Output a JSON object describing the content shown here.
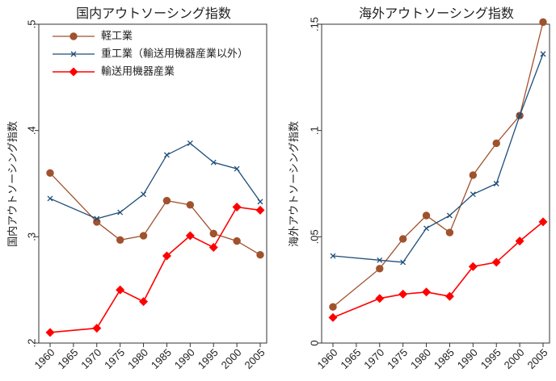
{
  "chart_data": [
    {
      "type": "line",
      "title": "国内アウトソーシング指数",
      "ylabel": "国内アウトソーシング指数",
      "xlabel": "",
      "x": [
        1960,
        1970,
        1975,
        1980,
        1985,
        1990,
        1995,
        2000,
        2005
      ],
      "xticks": [
        1960,
        1965,
        1970,
        1975,
        1980,
        1985,
        1990,
        1995,
        2000,
        2005
      ],
      "yticks": [
        0.2,
        0.3,
        0.4,
        0.5
      ],
      "ytick_labels": [
        ".2",
        ".3",
        ".4",
        ".5"
      ],
      "ylim": [
        0.2,
        0.5
      ],
      "grid": false,
      "legend_position": "top-left",
      "series": [
        {
          "name": "軽工業",
          "color": "#a0522d",
          "marker": "circle",
          "values": [
            0.36,
            0.314,
            0.297,
            0.301,
            0.334,
            0.33,
            0.303,
            0.296,
            0.283
          ]
        },
        {
          "name": "重工業（輸送用機器産業以外）",
          "color": "#1f4e79",
          "marker": "x",
          "values": [
            0.336,
            0.317,
            0.323,
            0.34,
            0.377,
            0.388,
            0.37,
            0.364,
            0.333
          ]
        },
        {
          "name": "輸送用機器産業",
          "color": "#ff0000",
          "marker": "diamond",
          "values": [
            0.21,
            0.214,
            0.25,
            0.239,
            0.282,
            0.301,
            0.29,
            0.328,
            0.325
          ]
        }
      ]
    },
    {
      "type": "line",
      "title": "海外アウトソーシング指数",
      "ylabel": "海外アウトソーシング指数",
      "xlabel": "",
      "x": [
        1960,
        1970,
        1975,
        1980,
        1985,
        1990,
        1995,
        2000,
        2005
      ],
      "xticks": [
        1960,
        1965,
        1970,
        1975,
        1980,
        1985,
        1990,
        1995,
        2000,
        2005
      ],
      "yticks": [
        0,
        0.05,
        0.1,
        0.15
      ],
      "ytick_labels": [
        "0",
        ".05",
        ".1",
        ".15"
      ],
      "ylim": [
        0,
        0.15
      ],
      "grid": false,
      "series": [
        {
          "name": "軽工業",
          "color": "#a0522d",
          "marker": "circle",
          "values": [
            0.017,
            0.035,
            0.049,
            0.06,
            0.052,
            0.079,
            0.094,
            0.107,
            0.151
          ]
        },
        {
          "name": "重工業（輸送用機器産業以外）",
          "color": "#1f4e79",
          "marker": "x",
          "values": [
            0.041,
            0.039,
            0.038,
            0.054,
            0.06,
            0.07,
            0.075,
            0.107,
            0.136
          ]
        },
        {
          "name": "輸送用機器産業",
          "color": "#ff0000",
          "marker": "diamond",
          "values": [
            0.012,
            0.021,
            0.023,
            0.024,
            0.022,
            0.036,
            0.038,
            0.048,
            0.057
          ]
        }
      ]
    }
  ]
}
